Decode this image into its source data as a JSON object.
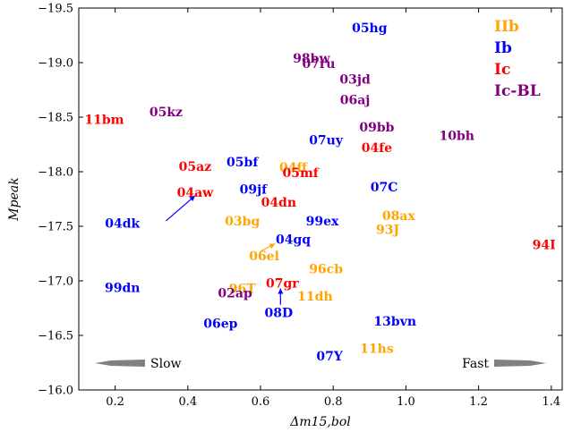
{
  "chart_data": {
    "type": "scatter",
    "title": "",
    "xlabel": "Δm15,bol",
    "ylabel": "Mpeak",
    "xlim": [
      0.1,
      1.43
    ],
    "ylim": [
      -16.0,
      -19.5
    ],
    "y_inverted": true,
    "grid": false,
    "legend_position": "top-right",
    "x_ticks": [
      "0.2",
      "0.4",
      "0.6",
      "0.8",
      "1.0",
      "1.2",
      "1.4"
    ],
    "x_tick_values": [
      0.2,
      0.4,
      0.6,
      0.8,
      1.0,
      1.2,
      1.4
    ],
    "y_ticks": [
      "−16.0",
      "−16.5",
      "−17.0",
      "−17.5",
      "−18.0",
      "−18.5",
      "−19.0",
      "−19.5"
    ],
    "y_tick_values": [
      -16.0,
      -16.5,
      -17.0,
      -17.5,
      -18.0,
      -18.5,
      -19.0,
      -19.5
    ],
    "series": [
      {
        "name": "IIb",
        "color": "#ffa500",
        "points": [
          {
            "label": "04ff",
            "x": 0.69,
            "y": -18.04
          },
          {
            "label": "03bg",
            "x": 0.55,
            "y": -17.55
          },
          {
            "label": "08ax",
            "x": 0.98,
            "y": -17.6
          },
          {
            "label": "93J",
            "x": 0.95,
            "y": -17.47
          },
          {
            "label": "06el",
            "x": 0.61,
            "y": -17.23
          },
          {
            "label": "96cb",
            "x": 0.78,
            "y": -17.11
          },
          {
            "label": "96T",
            "x": 0.55,
            "y": -16.93
          },
          {
            "label": "11dh",
            "x": 0.75,
            "y": -16.86
          },
          {
            "label": "11hs",
            "x": 0.92,
            "y": -16.38
          }
        ]
      },
      {
        "name": "Ib",
        "color": "#0000ff",
        "points": [
          {
            "label": "05hg",
            "x": 0.9,
            "y": -19.32
          },
          {
            "label": "07uy",
            "x": 0.78,
            "y": -18.29
          },
          {
            "label": "05bf",
            "x": 0.55,
            "y": -18.09
          },
          {
            "label": "09jf",
            "x": 0.58,
            "y": -17.84
          },
          {
            "label": "07C",
            "x": 0.94,
            "y": -17.86
          },
          {
            "label": "04dk",
            "x": 0.22,
            "y": -17.53
          },
          {
            "label": "99ex",
            "x": 0.77,
            "y": -17.55
          },
          {
            "label": "04gq",
            "x": 0.69,
            "y": -17.38
          },
          {
            "label": "99dn",
            "x": 0.22,
            "y": -16.94
          },
          {
            "label": "08D",
            "x": 0.65,
            "y": -16.71
          },
          {
            "label": "06ep",
            "x": 0.49,
            "y": -16.61
          },
          {
            "label": "13bvn",
            "x": 0.97,
            "y": -16.63
          },
          {
            "label": "07Y",
            "x": 0.79,
            "y": -16.31
          }
        ]
      },
      {
        "name": "Ic",
        "color": "#ff0000",
        "points": [
          {
            "label": "11bm",
            "x": 0.17,
            "y": -18.48
          },
          {
            "label": "04fe",
            "x": 0.92,
            "y": -18.22
          },
          {
            "label": "05az",
            "x": 0.42,
            "y": -18.05
          },
          {
            "label": "05mf",
            "x": 0.71,
            "y": -17.99
          },
          {
            "label": "04aw",
            "x": 0.42,
            "y": -17.81
          },
          {
            "label": "04dn",
            "x": 0.65,
            "y": -17.72
          },
          {
            "label": "07gr",
            "x": 0.66,
            "y": -16.98
          },
          {
            "label": "94I",
            "x": 1.38,
            "y": -17.33
          }
        ]
      },
      {
        "name": "Ic-BL",
        "color": "#800080",
        "points": [
          {
            "label": "98bw",
            "x": 0.74,
            "y": -19.04
          },
          {
            "label": "07ru",
            "x": 0.76,
            "y": -18.99
          },
          {
            "label": "03jd",
            "x": 0.86,
            "y": -18.85
          },
          {
            "label": "06aj",
            "x": 0.86,
            "y": -18.66
          },
          {
            "label": "05kz",
            "x": 0.34,
            "y": -18.55
          },
          {
            "label": "09bb",
            "x": 0.92,
            "y": -18.41
          },
          {
            "label": "10bh",
            "x": 1.14,
            "y": -18.33
          },
          {
            "label": "02ap",
            "x": 0.53,
            "y": -16.89
          }
        ]
      }
    ],
    "annotations": [
      {
        "text": "Slow",
        "direction": "left"
      },
      {
        "text": "Fast",
        "direction": "right"
      }
    ],
    "arrows": [
      {
        "from": [
          0.34,
          -17.55
        ],
        "to": [
          0.42,
          -17.78
        ],
        "color": "#0000ff"
      },
      {
        "from": [
          0.6,
          -17.27
        ],
        "to": [
          0.64,
          -17.34
        ],
        "color": "#ffa500"
      },
      {
        "from": [
          0.655,
          -16.78
        ],
        "to": [
          0.655,
          -16.93
        ],
        "color": "#0000ff"
      }
    ]
  }
}
